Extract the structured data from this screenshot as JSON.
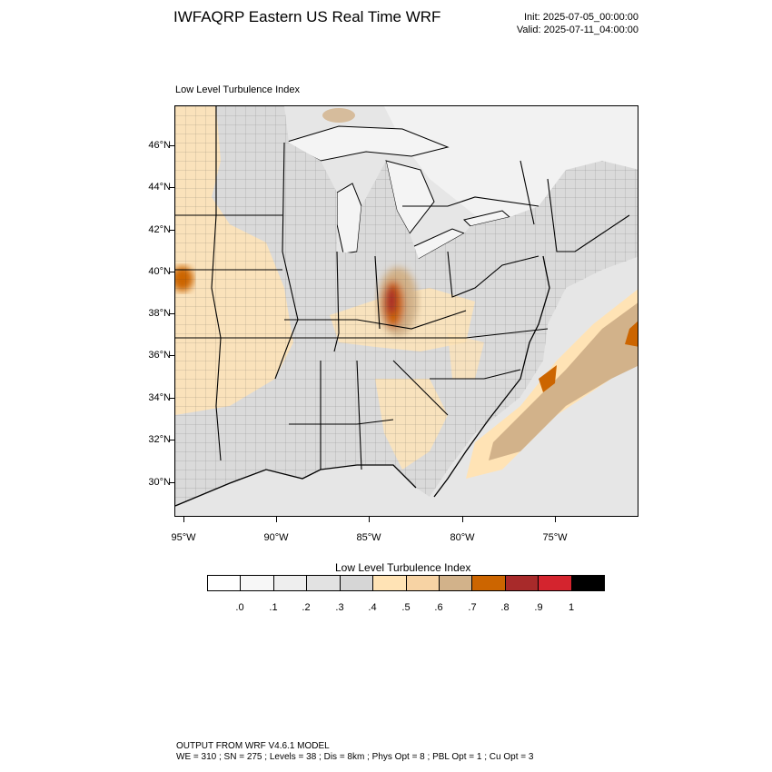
{
  "header": {
    "title": "IWFAQRP Eastern US Real Time WRF",
    "init": "Init: 2025-07-05_00:00:00",
    "valid": "Valid: 2025-07-11_04:00:00"
  },
  "map": {
    "subtitle": "Low Level Turbulence Index",
    "lat_labels": [
      "46°N",
      "44°N",
      "42°N",
      "40°N",
      "38°N",
      "36°N",
      "34°N",
      "32°N",
      "30°N"
    ],
    "lon_labels": [
      "95°W",
      "90°W",
      "85°W",
      "80°W",
      "75°W"
    ]
  },
  "colorbar": {
    "title": "Low Level Turbulence Index",
    "labels": [
      ".0",
      ".1",
      ".2",
      ".3",
      ".4",
      ".5",
      ".6",
      ".7",
      ".8",
      ".9",
      "1"
    ],
    "colors": [
      "#ffffff",
      "#f7f7f7",
      "#eeeeee",
      "#e2e2e2",
      "#d6d6d6",
      "#ffe3b5",
      "#f7d3a4",
      "#d2b28a",
      "#cc6500",
      "#a82a2a",
      "#d4242e",
      "#000000"
    ]
  },
  "footer": {
    "line1": "OUTPUT FROM WRF V4.6.1 MODEL",
    "line2": "WE = 310 ; SN = 275 ; Levels = 38 ; Dis = 8km ; Phys Opt = 8 ; PBL Opt = 1 ; Cu Opt = 3"
  }
}
